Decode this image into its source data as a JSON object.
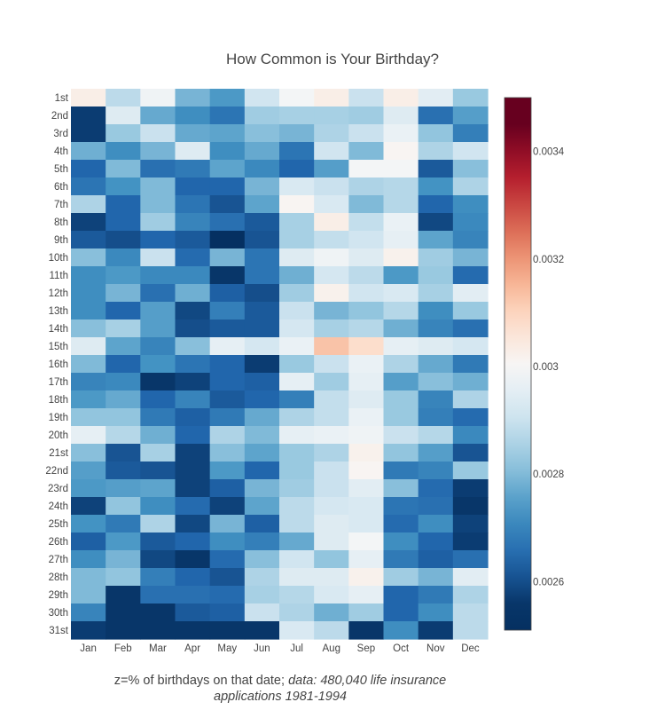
{
  "chart_data": {
    "type": "heatmap",
    "title": "How Common is Your Birthday?",
    "x_categories": [
      "Jan",
      "Feb",
      "Mar",
      "Apr",
      "May",
      "Jun",
      "Jul",
      "Aug",
      "Sep",
      "Oct",
      "Nov",
      "Dec"
    ],
    "y_categories": [
      "1st",
      "2nd",
      "3rd",
      "4th",
      "5th",
      "6th",
      "7th",
      "8th",
      "9th",
      "10th",
      "11th",
      "12th",
      "13th",
      "14th",
      "15th",
      "16th",
      "17th",
      "18th",
      "19th",
      "20th",
      "21st",
      "22nd",
      "23rd",
      "24th",
      "25th",
      "26th",
      "27th",
      "28th",
      "29th",
      "30th",
      "31st"
    ],
    "z": [
      [
        0.00303,
        0.00288,
        0.00298,
        0.00279,
        0.00274,
        0.00291,
        0.00299,
        0.00303,
        0.0029,
        0.00303,
        0.00295,
        0.00283
      ],
      [
        0.00257,
        0.00294,
        0.00277,
        0.00272,
        0.00267,
        0.00284,
        0.00285,
        0.00285,
        0.00284,
        0.00294,
        0.00266,
        0.00275
      ],
      [
        0.00257,
        0.00283,
        0.0029,
        0.00277,
        0.00276,
        0.00281,
        0.00279,
        0.00286,
        0.0029,
        0.00297,
        0.00282,
        0.00269
      ],
      [
        0.00278,
        0.00272,
        0.00279,
        0.00294,
        0.00272,
        0.00277,
        0.00267,
        0.00291,
        0.0028,
        0.00301,
        0.00286,
        0.00291
      ],
      [
        0.00264,
        0.0028,
        0.00266,
        0.00268,
        0.00276,
        0.00271,
        0.00264,
        0.00275,
        0.00299,
        0.00299,
        0.00262,
        0.00281
      ],
      [
        0.00267,
        0.00273,
        0.0028,
        0.00264,
        0.00264,
        0.00279,
        0.00293,
        0.0029,
        0.00286,
        0.00287,
        0.00273,
        0.00286
      ],
      [
        0.00286,
        0.00264,
        0.0028,
        0.00267,
        0.00261,
        0.00276,
        0.00301,
        0.00293,
        0.0028,
        0.00287,
        0.00264,
        0.00272
      ],
      [
        0.00258,
        0.00264,
        0.00284,
        0.0027,
        0.00266,
        0.00262,
        0.00285,
        0.00303,
        0.00289,
        0.00297,
        0.00259,
        0.00271
      ],
      [
        0.00262,
        0.0026,
        0.00264,
        0.00262,
        0.00255,
        0.00261,
        0.00285,
        0.00289,
        0.00291,
        0.00296,
        0.00276,
        0.0027
      ],
      [
        0.00281,
        0.00271,
        0.0029,
        0.00265,
        0.00279,
        0.00267,
        0.00294,
        0.00298,
        0.00294,
        0.00302,
        0.00284,
        0.00279
      ],
      [
        0.00272,
        0.00274,
        0.00271,
        0.00271,
        0.00256,
        0.00267,
        0.00278,
        0.00292,
        0.00288,
        0.00274,
        0.00283,
        0.00265
      ],
      [
        0.00272,
        0.00279,
        0.00266,
        0.00278,
        0.00263,
        0.0026,
        0.00284,
        0.00302,
        0.00291,
        0.00293,
        0.00285,
        0.00295
      ],
      [
        0.00272,
        0.00264,
        0.00275,
        0.00259,
        0.00269,
        0.00262,
        0.0029,
        0.00279,
        0.00282,
        0.00287,
        0.00272,
        0.00283
      ],
      [
        0.00281,
        0.00285,
        0.00275,
        0.0026,
        0.00262,
        0.00262,
        0.00292,
        0.00285,
        0.00287,
        0.00278,
        0.0027,
        0.00266
      ],
      [
        0.00294,
        0.00276,
        0.0027,
        0.00281,
        0.00296,
        0.00292,
        0.00297,
        0.00313,
        0.00308,
        0.00296,
        0.00294,
        0.00292
      ],
      [
        0.0028,
        0.00264,
        0.00273,
        0.00267,
        0.00264,
        0.00257,
        0.00283,
        0.0029,
        0.00297,
        0.00286,
        0.00277,
        0.00268
      ],
      [
        0.0027,
        0.00271,
        0.00256,
        0.00258,
        0.00264,
        0.00263,
        0.00296,
        0.00284,
        0.00296,
        0.00275,
        0.00281,
        0.00278
      ],
      [
        0.00274,
        0.00277,
        0.00264,
        0.0027,
        0.00262,
        0.00264,
        0.00269,
        0.00289,
        0.00294,
        0.00283,
        0.0027,
        0.00286
      ],
      [
        0.00282,
        0.00282,
        0.00268,
        0.00263,
        0.00268,
        0.00277,
        0.00286,
        0.00289,
        0.00297,
        0.00283,
        0.00269,
        0.00265
      ],
      [
        0.00296,
        0.00287,
        0.00278,
        0.00264,
        0.00286,
        0.0028,
        0.00296,
        0.00297,
        0.00298,
        0.0029,
        0.00287,
        0.00271
      ],
      [
        0.00281,
        0.00261,
        0.00285,
        0.00258,
        0.00281,
        0.00276,
        0.00283,
        0.00286,
        0.00302,
        0.00282,
        0.00275,
        0.00261
      ],
      [
        0.00275,
        0.00262,
        0.00261,
        0.00258,
        0.00274,
        0.00264,
        0.00283,
        0.0029,
        0.00301,
        0.00268,
        0.0027,
        0.00283
      ],
      [
        0.00274,
        0.00275,
        0.00276,
        0.00258,
        0.00263,
        0.00279,
        0.00284,
        0.0029,
        0.00295,
        0.00281,
        0.00265,
        0.00257
      ],
      [
        0.00258,
        0.00282,
        0.00272,
        0.00265,
        0.00258,
        0.00276,
        0.00288,
        0.00292,
        0.00293,
        0.00267,
        0.00266,
        0.00256
      ],
      [
        0.00273,
        0.00268,
        0.00286,
        0.00259,
        0.00279,
        0.00263,
        0.00288,
        0.00294,
        0.00293,
        0.00265,
        0.00272,
        0.00258
      ],
      [
        0.00263,
        0.00274,
        0.00262,
        0.00264,
        0.00272,
        0.00269,
        0.00277,
        0.00294,
        0.00299,
        0.00272,
        0.00264,
        0.00257
      ],
      [
        0.00272,
        0.00279,
        0.00259,
        0.00256,
        0.00265,
        0.00281,
        0.00291,
        0.00282,
        0.00296,
        0.00268,
        0.00263,
        0.00266
      ],
      [
        0.0028,
        0.00282,
        0.00269,
        0.00264,
        0.00261,
        0.00286,
        0.00294,
        0.00294,
        0.00302,
        0.00284,
        0.00279,
        0.00295
      ],
      [
        0.0028,
        0.00256,
        0.00266,
        0.00266,
        0.00265,
        0.00285,
        0.00287,
        0.00293,
        0.00296,
        0.00264,
        0.00268,
        0.00286
      ],
      [
        0.0027,
        0.00256,
        0.00256,
        0.00262,
        0.00263,
        0.0029,
        0.00286,
        0.00278,
        0.00284,
        0.00264,
        0.00272,
        0.00288
      ],
      [
        0.00257,
        0.00256,
        0.00256,
        0.00256,
        0.00256,
        0.00256,
        0.00293,
        0.00288,
        0.00256,
        0.00272,
        0.00257,
        0.00288
      ]
    ],
    "zmin": 0.00251,
    "zmax": 0.0035,
    "colorscale": "RdBu reversed",
    "colorbar_ticks": [
      "0.0026",
      "0.0028",
      "0.003",
      "0.0032",
      "0.0034"
    ],
    "colorbar_tick_values": [
      0.0026,
      0.0028,
      0.003,
      0.0032,
      0.0034
    ],
    "xlabel": "",
    "ylabel": ""
  },
  "caption": {
    "plain": "z=% of birthdays on that date; ",
    "italic_1": "data: 480,040 life insurance",
    "italic_2": "applications 1981-1994"
  }
}
